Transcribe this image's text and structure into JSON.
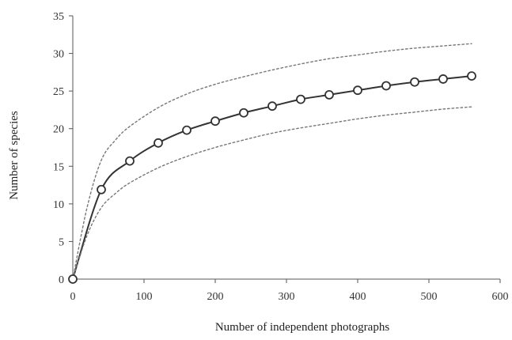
{
  "chart_data": {
    "type": "line",
    "title": "",
    "xlabel": "Number of independent photographs",
    "ylabel": "Number of species",
    "xlim": [
      0,
      600
    ],
    "ylim": [
      0,
      35
    ],
    "xticks": [
      0,
      100,
      200,
      300,
      400,
      500,
      600
    ],
    "yticks": [
      0,
      5,
      10,
      15,
      20,
      25,
      30,
      35
    ],
    "grid": false,
    "legend": "none",
    "series": [
      {
        "style": "solid-with-circle-markers",
        "color": "#333333",
        "x": [
          0,
          40,
          80,
          120,
          160,
          200,
          240,
          280,
          320,
          360,
          400,
          440,
          480,
          520,
          560
        ],
        "y": [
          0,
          11.9,
          15.7,
          18.1,
          19.8,
          21.0,
          22.1,
          23.0,
          23.9,
          24.5,
          25.1,
          25.7,
          26.2,
          26.6,
          27.0
        ]
      },
      {
        "style": "dotted",
        "color": "#777777",
        "x": [
          0,
          20,
          40,
          60,
          80,
          120,
          160,
          200,
          240,
          280,
          320,
          360,
          400,
          440,
          480,
          520,
          560
        ],
        "y": [
          0,
          9.5,
          15.8,
          18.5,
          20.3,
          22.8,
          24.6,
          25.9,
          26.9,
          27.8,
          28.6,
          29.3,
          29.8,
          30.3,
          30.7,
          31.0,
          31.3
        ]
      },
      {
        "style": "dotted",
        "color": "#777777",
        "x": [
          0,
          20,
          40,
          60,
          80,
          120,
          160,
          200,
          240,
          280,
          320,
          360,
          400,
          440,
          480,
          520,
          560
        ],
        "y": [
          0,
          5.8,
          9.5,
          11.4,
          12.8,
          14.8,
          16.3,
          17.5,
          18.5,
          19.4,
          20.1,
          20.7,
          21.3,
          21.8,
          22.2,
          22.6,
          22.9
        ]
      }
    ]
  }
}
